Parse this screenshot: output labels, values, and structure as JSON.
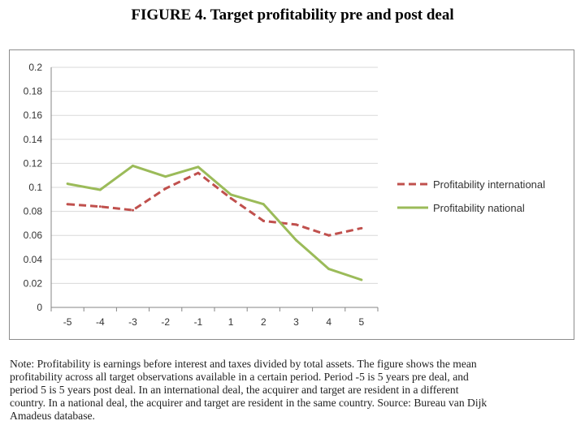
{
  "figure_title": "FIGURE 4. Target profitability pre and post deal",
  "chart_data": {
    "type": "line",
    "title": "",
    "xlabel": "",
    "ylabel": "",
    "categories": [
      "-5",
      "-4",
      "-3",
      "-2",
      "-1",
      "1",
      "2",
      "3",
      "4",
      "5"
    ],
    "ylim": [
      0,
      0.2
    ],
    "yticks": [
      "0",
      "0.02",
      "0.04",
      "0.06",
      "0.08",
      "0.1",
      "0.12",
      "0.14",
      "0.16",
      "0.18",
      "0.2"
    ],
    "grid": true,
    "legend_position": "right",
    "series": [
      {
        "name": "Profitability international",
        "style": "dashed",
        "color": "#c0504d",
        "values": [
          0.086,
          0.084,
          0.081,
          0.099,
          0.112,
          0.091,
          0.072,
          0.069,
          0.06,
          0.066
        ]
      },
      {
        "name": "Profitability national",
        "style": "solid",
        "color": "#9bbb59",
        "values": [
          0.103,
          0.098,
          0.118,
          0.109,
          0.117,
          0.094,
          0.086,
          0.056,
          0.032,
          0.023
        ]
      }
    ]
  },
  "note_lines": [
    "Note: Profitability is earnings before interest and taxes divided by total assets. The figure shows the mean",
    "profitability across all target observations available in a certain period. Period -5 is 5 years pre deal, and",
    "period 5 is 5 years post deal. In an international deal, the acquirer and target are resident in a different",
    "country. In a national deal, the acquirer and target are resident in the same country. Source: Bureau van Dijk",
    "Amadeus database."
  ]
}
